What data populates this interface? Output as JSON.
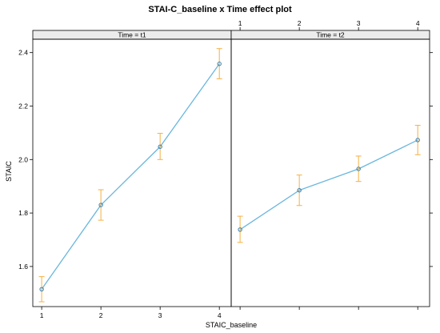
{
  "chart_data": {
    "type": "line",
    "title": "STAI-C_baseline x Time effect plot",
    "xlabel": "STAIC_baseline",
    "ylabel": "STAIC",
    "ylim": [
      1.45,
      2.45
    ],
    "y_ticks": [
      "1.6",
      "1.8",
      "2.0",
      "2.2",
      "2.4"
    ],
    "y_tick_values": [
      1.6,
      1.8,
      2.0,
      2.2,
      2.4
    ],
    "xlim": [
      0.85,
      4.2
    ],
    "x_ticks": [
      "1",
      "2",
      "3",
      "4"
    ],
    "x_tick_values": [
      1,
      2,
      3,
      4
    ],
    "colors": {
      "line": "#6bb7dd",
      "errorbar": "#f5b041",
      "point": "#3a7fae"
    },
    "panels": [
      {
        "strip": "Time = t1",
        "x": [
          1,
          2,
          3,
          4
        ],
        "y": [
          1.515,
          1.83,
          2.048,
          2.358
        ],
        "lower": [
          1.468,
          1.773,
          2.0,
          2.302
        ],
        "upper": [
          1.562,
          1.887,
          2.098,
          2.415
        ]
      },
      {
        "strip": "Time = t2",
        "x": [
          1,
          2,
          3,
          4
        ],
        "y": [
          1.738,
          1.885,
          1.965,
          2.073
        ],
        "lower": [
          1.69,
          1.828,
          1.918,
          2.018
        ],
        "upper": [
          1.788,
          1.942,
          2.013,
          2.128
        ]
      }
    ]
  }
}
